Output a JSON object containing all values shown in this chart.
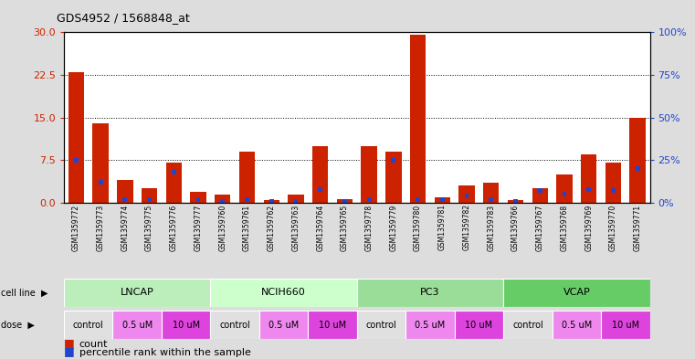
{
  "title": "GDS4952 / 1568848_at",
  "samples": [
    "GSM1359772",
    "GSM1359773",
    "GSM1359774",
    "GSM1359775",
    "GSM1359776",
    "GSM1359777",
    "GSM1359760",
    "GSM1359761",
    "GSM1359762",
    "GSM1359763",
    "GSM1359764",
    "GSM1359765",
    "GSM1359778",
    "GSM1359779",
    "GSM1359780",
    "GSM1359781",
    "GSM1359782",
    "GSM1359783",
    "GSM1359766",
    "GSM1359767",
    "GSM1359768",
    "GSM1359769",
    "GSM1359770",
    "GSM1359771"
  ],
  "counts": [
    23.0,
    14.0,
    4.0,
    2.5,
    7.0,
    2.0,
    1.5,
    9.0,
    0.5,
    1.5,
    10.0,
    0.7,
    10.0,
    9.0,
    29.5,
    1.0,
    3.0,
    3.5,
    0.5,
    2.5,
    5.0,
    8.5,
    7.0,
    15.0
  ],
  "percentiles": [
    25,
    12,
    2,
    2,
    18,
    2,
    1,
    2,
    1,
    1,
    8,
    1,
    2,
    25,
    2,
    2,
    4,
    2,
    1,
    7,
    5,
    8,
    7,
    20
  ],
  "cell_lines": [
    {
      "name": "LNCAP",
      "start": 0,
      "end": 6
    },
    {
      "name": "NCIH660",
      "start": 6,
      "end": 12
    },
    {
      "name": "PC3",
      "start": 12,
      "end": 18
    },
    {
      "name": "VCAP",
      "start": 18,
      "end": 24
    }
  ],
  "cell_line_colors": [
    "#bbeebb",
    "#ccffcc",
    "#99dd99",
    "#66cc66"
  ],
  "doses": [
    {
      "name": "control",
      "start": 0,
      "end": 2,
      "color": "#e0e0e0"
    },
    {
      "name": "0.5 uM",
      "start": 2,
      "end": 4,
      "color": "#ee88ee"
    },
    {
      "name": "10 uM",
      "start": 4,
      "end": 6,
      "color": "#dd44dd"
    },
    {
      "name": "control",
      "start": 6,
      "end": 8,
      "color": "#e0e0e0"
    },
    {
      "name": "0.5 uM",
      "start": 8,
      "end": 10,
      "color": "#ee88ee"
    },
    {
      "name": "10 uM",
      "start": 10,
      "end": 12,
      "color": "#dd44dd"
    },
    {
      "name": "control",
      "start": 12,
      "end": 14,
      "color": "#e0e0e0"
    },
    {
      "name": "0.5 uM",
      "start": 14,
      "end": 16,
      "color": "#ee88ee"
    },
    {
      "name": "10 uM",
      "start": 16,
      "end": 18,
      "color": "#dd44dd"
    },
    {
      "name": "control",
      "start": 18,
      "end": 20,
      "color": "#e0e0e0"
    },
    {
      "name": "0.5 uM",
      "start": 20,
      "end": 22,
      "color": "#ee88ee"
    },
    {
      "name": "10 uM",
      "start": 22,
      "end": 24,
      "color": "#dd44dd"
    }
  ],
  "left_ylim": [
    0,
    30
  ],
  "left_yticks": [
    0,
    7.5,
    15,
    22.5,
    30
  ],
  "right_ylim": [
    0,
    100
  ],
  "right_yticks": [
    0,
    25,
    50,
    75,
    100
  ],
  "bar_color": "#cc2200",
  "percentile_color": "#2244cc",
  "fig_bg": "#dddddd",
  "plot_bg": "#ffffff",
  "xtick_bg": "#cccccc"
}
